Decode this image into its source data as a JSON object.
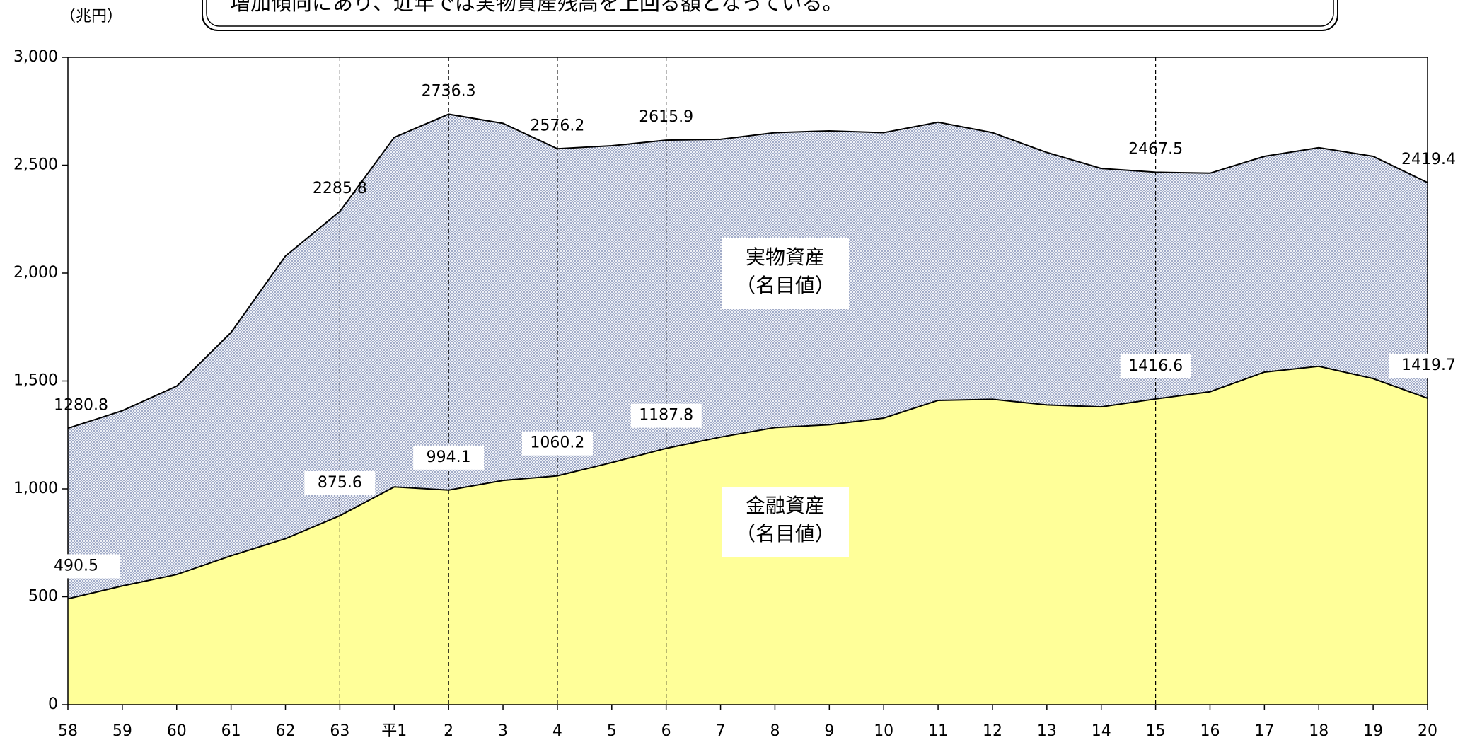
{
  "chart_data": {
    "type": "area",
    "title": "増加傾向にあり、近年では実物資産残高を上回る額となっている。",
    "y_unit": "（兆円）",
    "categories": [
      "58",
      "59",
      "60",
      "61",
      "62",
      "63",
      "平1",
      "2",
      "3",
      "4",
      "5",
      "6",
      "7",
      "8",
      "9",
      "10",
      "11",
      "12",
      "13",
      "14",
      "15",
      "16",
      "17",
      "18",
      "19",
      "20"
    ],
    "series": [
      {
        "name": [
          "実物資産",
          "（名目値）"
        ],
        "color": "#6b7ba8",
        "values": [
          1280.8,
          1362,
          1476,
          1725,
          2079,
          2285.8,
          2629,
          2736.3,
          2694,
          2576.2,
          2590,
          2615.9,
          2620,
          2651,
          2659,
          2651,
          2699,
          2651,
          2559,
          2485,
          2467.5,
          2463,
          2541,
          2581,
          2541,
          2419.4
        ],
        "value_labels": [
          "1280.8",
          null,
          null,
          null,
          null,
          "2285.8",
          null,
          "2736.3",
          null,
          "2576.2",
          null,
          "2615.9",
          null,
          null,
          null,
          null,
          null,
          null,
          null,
          null,
          "2467.5",
          null,
          null,
          null,
          null,
          "2419.4"
        ]
      },
      {
        "name": [
          "金融資産",
          "（名目値）"
        ],
        "color": "#ffff99",
        "values": [
          490.5,
          550,
          603,
          690,
          769,
          875.6,
          1009,
          994.1,
          1039,
          1060.2,
          1122,
          1187.8,
          1240,
          1284,
          1297,
          1328,
          1410,
          1415,
          1389,
          1380,
          1416.6,
          1450,
          1541,
          1568,
          1511,
          1419.7
        ],
        "value_labels": [
          "490.5",
          null,
          null,
          null,
          null,
          "875.6",
          null,
          "994.1",
          null,
          "1060.2",
          null,
          "1187.8",
          null,
          null,
          null,
          null,
          null,
          null,
          null,
          null,
          "1416.6",
          null,
          null,
          null,
          null,
          "1419.7"
        ]
      }
    ],
    "ylim": [
      0,
      3000
    ],
    "yticks": [
      0,
      500,
      {
        "value": 1000,
        "label": "1,000"
      },
      {
        "value": 1500,
        "label": "1,500"
      },
      {
        "value": 2000,
        "label": "2,000"
      },
      {
        "value": 2500,
        "label": "2,500"
      },
      {
        "value": 3000,
        "label": "3,000"
      }
    ]
  }
}
